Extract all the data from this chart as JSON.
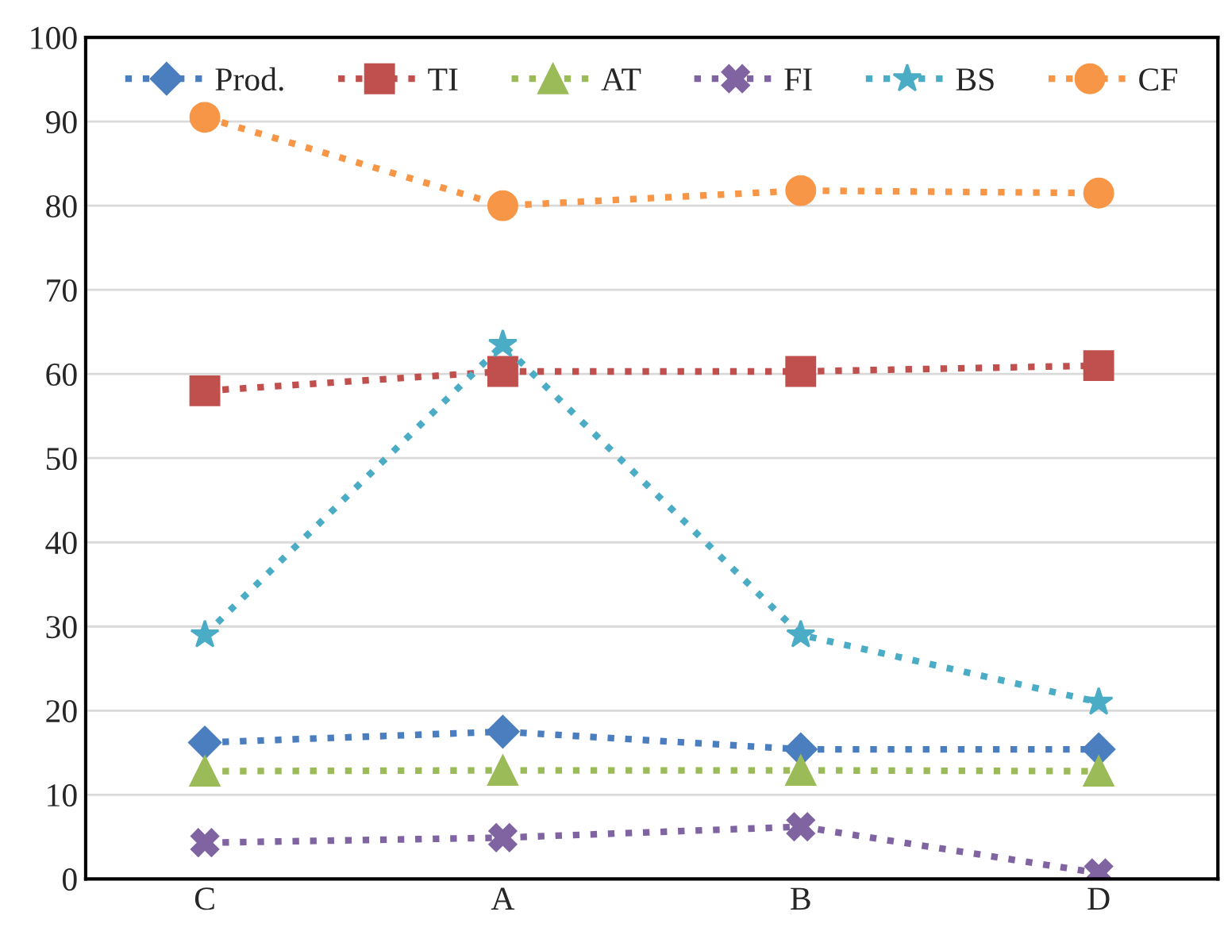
{
  "chart_data": {
    "type": "line",
    "categories": [
      "C",
      "A",
      "B",
      "D"
    ],
    "ylim": [
      0,
      100
    ],
    "yticks": [
      0,
      10,
      20,
      30,
      40,
      50,
      60,
      70,
      80,
      90,
      100
    ],
    "grid": "y",
    "legend": "top",
    "line_style": "dotted",
    "series": [
      {
        "name": "Prod.",
        "color": "#4a7ebf",
        "marker": "diamond",
        "values": [
          16.2,
          17.5,
          15.4,
          15.4
        ]
      },
      {
        "name": "TI",
        "color": "#c0504d",
        "marker": "square",
        "values": [
          58,
          60.3,
          60.3,
          61
        ]
      },
      {
        "name": "AT",
        "color": "#9bbb59",
        "marker": "triangle",
        "values": [
          12.8,
          12.9,
          12.9,
          12.8
        ]
      },
      {
        "name": "FI",
        "color": "#8064a2",
        "marker": "cross",
        "values": [
          4.3,
          4.9,
          6.2,
          0.7
        ]
      },
      {
        "name": "BS",
        "color": "#4bacc6",
        "marker": "star",
        "values": [
          29,
          63.5,
          29,
          21
        ]
      },
      {
        "name": "CF",
        "color": "#f79646",
        "marker": "circle",
        "values": [
          90.5,
          80,
          81.8,
          81.5
        ]
      }
    ]
  }
}
